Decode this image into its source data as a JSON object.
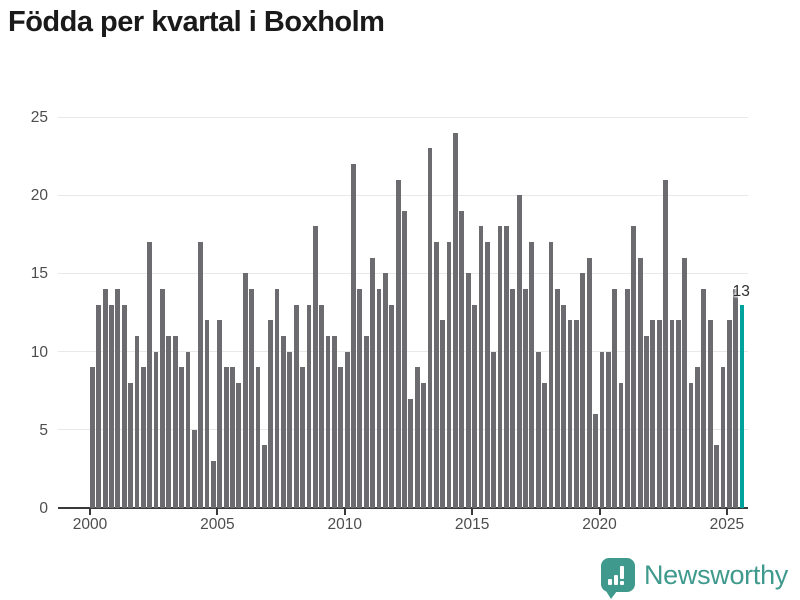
{
  "title": "Födda per kvartal i Boxholm",
  "annotation": {
    "last_value_label": "13"
  },
  "footer": {
    "brand": "Newsworthy",
    "logo_icon": "bar-chart-speech-bubble-icon"
  },
  "colors": {
    "bar": "#6b6b70",
    "highlight": "#00a39b",
    "logo_teal": "#3f9a8d",
    "grid": "#e8e8e8",
    "axis_line": "#3a3a3a",
    "axis_text": "#4d4d4d",
    "title_text": "#1a1a1a"
  },
  "chart_data": {
    "type": "bar",
    "title": "Födda per kvartal i Boxholm",
    "xlabel": "",
    "ylabel": "",
    "x_start_year": 2000,
    "quarters_per_year": 4,
    "x_tick_labels": [
      "2000",
      "2005",
      "2010",
      "2015",
      "2020",
      "2025"
    ],
    "y_tick_labels": [
      "0",
      "5",
      "10",
      "15",
      "20",
      "25"
    ],
    "ylim": [
      0,
      25
    ],
    "grid": "horizontal",
    "legend": "none",
    "highlight_last_bar": true,
    "last_bar_label": "13",
    "values": [
      9,
      13,
      14,
      13,
      14,
      13,
      8,
      11,
      9,
      17,
      10,
      14,
      11,
      11,
      9,
      10,
      5,
      17,
      12,
      3,
      12,
      9,
      9,
      8,
      15,
      14,
      9,
      4,
      12,
      14,
      11,
      10,
      13,
      9,
      13,
      18,
      13,
      11,
      11,
      9,
      10,
      22,
      14,
      11,
      16,
      14,
      15,
      13,
      21,
      19,
      7,
      9,
      8,
      23,
      17,
      12,
      17,
      24,
      19,
      15,
      13,
      18,
      17,
      10,
      18,
      18,
      14,
      20,
      14,
      17,
      10,
      8,
      17,
      14,
      13,
      12,
      12,
      15,
      16,
      6,
      10,
      10,
      14,
      8,
      14,
      18,
      16,
      11,
      12,
      12,
      21,
      12,
      12,
      16,
      8,
      9,
      14,
      12,
      4,
      9,
      12,
      14,
      13
    ]
  }
}
